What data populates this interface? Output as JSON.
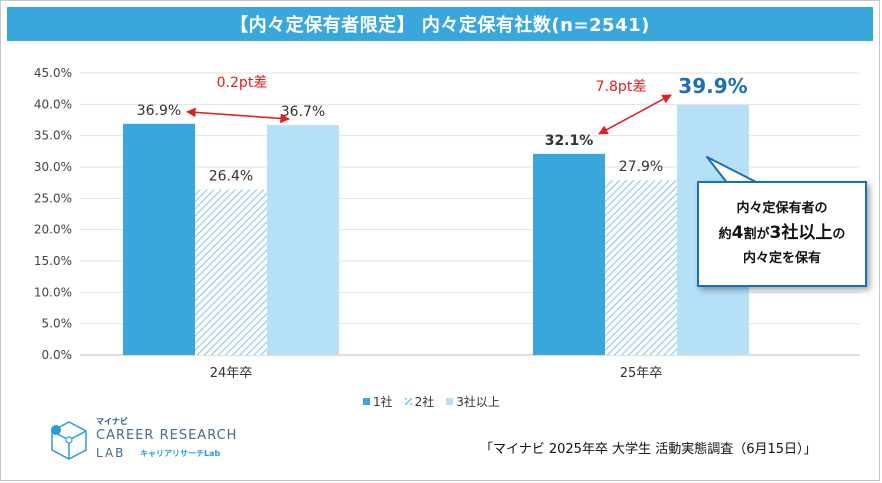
{
  "header": {
    "title": "【内々定保有者限定】 内々定保有社数(n=2541)"
  },
  "chart_data": {
    "type": "bar",
    "title": "【内々定保有者限定】 内々定保有社数(n=2541)",
    "categories": [
      "24年卒",
      "25年卒"
    ],
    "series": [
      {
        "name": "1社",
        "values": [
          36.9,
          32.1
        ],
        "labels": [
          "36.9%",
          "32.1%"
        ],
        "color": "#3aa7dc",
        "pattern": "solid"
      },
      {
        "name": "2社",
        "values": [
          26.4,
          27.9
        ],
        "labels": [
          "26.4%",
          "27.9%"
        ],
        "color": "#8cc7e6",
        "pattern": "hatch"
      },
      {
        "name": "3社以上",
        "values": [
          36.7,
          39.9
        ],
        "labels": [
          "36.7%",
          "39.9%"
        ],
        "color": "#b5e0f7",
        "pattern": "solid"
      }
    ],
    "ylim": [
      0,
      45
    ],
    "yticks": [
      "0.0%",
      "5.0%",
      "10.0%",
      "15.0%",
      "20.0%",
      "25.0%",
      "30.0%",
      "35.0%",
      "40.0%",
      "45.0%"
    ],
    "grid": true,
    "annotations": [
      {
        "text": "0.2pt差",
        "category": "24年卒",
        "color": "#e02020"
      },
      {
        "text": "7.8pt差",
        "category": "25年卒",
        "color": "#e02020"
      }
    ],
    "legend": {
      "position": "bottom"
    }
  },
  "legend": {
    "items": [
      "1社",
      "2社",
      "3社以上"
    ]
  },
  "callout": {
    "line1": "内々定保有者の",
    "line2_a": "約",
    "line2_b": "4",
    "line2_c": "割が",
    "line2_d": "3",
    "line2_e": "社以上",
    "line2_f": "の",
    "line3": "内々定を保有"
  },
  "source": "「マイナビ 2025年卒 大学生 活動実態調査（6月15日）」",
  "logo": {
    "brand": "マイナビ",
    "line1": "CAREER RESEARCH",
    "line2": "LAB",
    "sub": "キャリアリサーチLab"
  },
  "colors": {
    "accent": "#3aa7dc",
    "highlight": "#1a6fb6",
    "diff": "#e02020"
  }
}
